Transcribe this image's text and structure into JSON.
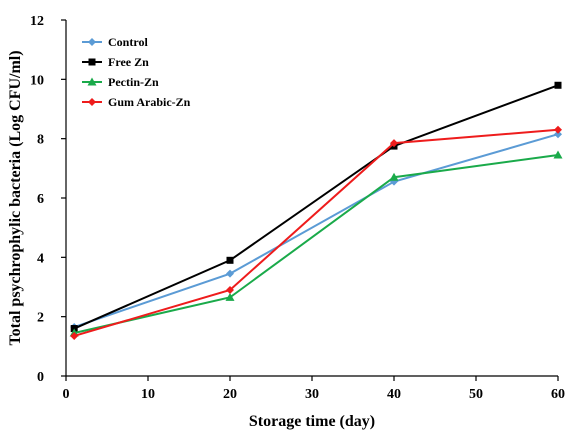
{
  "chart_data": {
    "type": "line",
    "xlabel": "Storage time (day)",
    "ylabel": "Total psychrophylic bacteria (Log CFU/ml)",
    "xlim": [
      0,
      60
    ],
    "ylim": [
      0,
      12
    ],
    "xticks": [
      0,
      10,
      20,
      30,
      40,
      50,
      60
    ],
    "yticks": [
      0,
      2,
      4,
      6,
      8,
      10,
      12
    ],
    "grid": false,
    "legend_position": "top-left",
    "series": [
      {
        "name": "Control",
        "color": "#5b9bd5",
        "marker": "diamond",
        "x": [
          1,
          20,
          40,
          60
        ],
        "y": [
          1.65,
          3.45,
          6.55,
          8.15
        ]
      },
      {
        "name": "Free Zn",
        "color": "#000000",
        "marker": "square",
        "x": [
          1,
          20,
          40,
          60
        ],
        "y": [
          1.6,
          3.9,
          7.75,
          9.8
        ]
      },
      {
        "name": "Pectin-Zn",
        "color": "#1aaa4a",
        "marker": "triangle",
        "x": [
          1,
          20,
          40,
          60
        ],
        "y": [
          1.45,
          2.65,
          6.7,
          7.45
        ]
      },
      {
        "name": "Gum Arabic-Zn",
        "color": "#ee1c1c",
        "marker": "diamond",
        "x": [
          1,
          20,
          40,
          60
        ],
        "y": [
          1.35,
          2.9,
          7.85,
          8.3
        ]
      }
    ]
  }
}
